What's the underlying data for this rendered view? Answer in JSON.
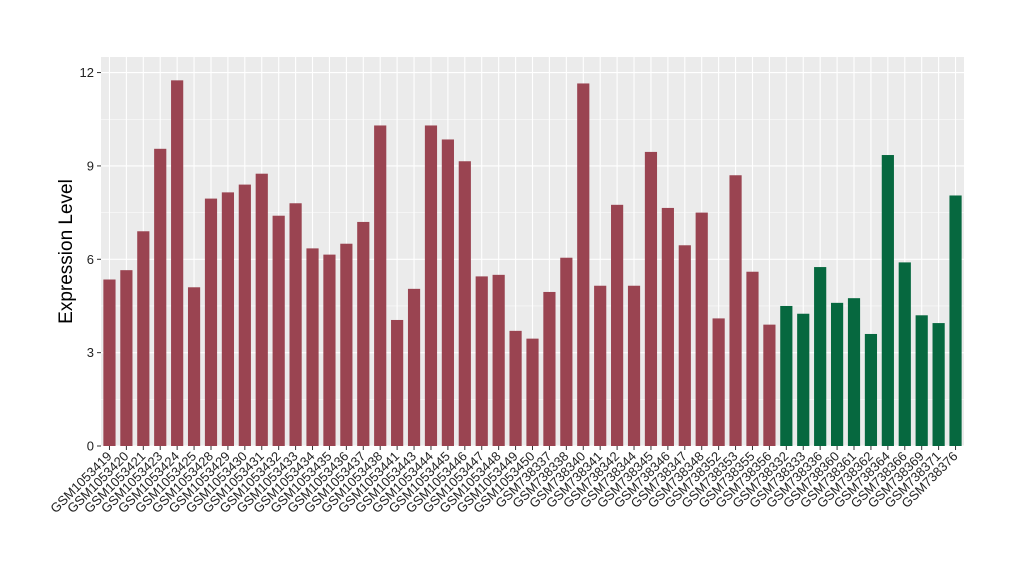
{
  "chart_data": {
    "type": "bar",
    "title": "",
    "xlabel": "",
    "ylabel": "Expression Level",
    "ylim": [
      0,
      12.5
    ],
    "yticks": [
      0,
      3,
      6,
      9,
      12
    ],
    "grid": true,
    "colors": {
      "group_a": "#9a4451",
      "group_b": "#06683f",
      "panel": "#ebebeb",
      "grid": "#ffffff"
    },
    "categories": [
      "GSM1053419",
      "GSM1053420",
      "GSM1053421",
      "GSM1053423",
      "GSM1053424",
      "GSM1053425",
      "GSM1053428",
      "GSM1053429",
      "GSM1053430",
      "GSM1053431",
      "GSM1053432",
      "GSM1053433",
      "GSM1053434",
      "GSM1053435",
      "GSM1053436",
      "GSM1053437",
      "GSM1053438",
      "GSM1053441",
      "GSM1053443",
      "GSM1053444",
      "GSM1053445",
      "GSM1053446",
      "GSM1053447",
      "GSM1053448",
      "GSM1053449",
      "GSM1053450",
      "GSM738337",
      "GSM738338",
      "GSM738340",
      "GSM738341",
      "GSM738342",
      "GSM738344",
      "GSM738345",
      "GSM738346",
      "GSM738347",
      "GSM738348",
      "GSM738352",
      "GSM738353",
      "GSM738355",
      "GSM738356",
      "GSM738332",
      "GSM738333",
      "GSM738336",
      "GSM738360",
      "GSM738361",
      "GSM738362",
      "GSM738364",
      "GSM738366",
      "GSM738369",
      "GSM738371",
      "GSM738376"
    ],
    "values": [
      5.35,
      5.65,
      6.9,
      9.55,
      11.75,
      5.1,
      7.95,
      8.15,
      8.4,
      8.75,
      7.4,
      7.8,
      6.35,
      6.15,
      6.5,
      7.2,
      10.3,
      4.05,
      5.05,
      10.3,
      9.85,
      9.15,
      5.45,
      5.5,
      3.7,
      3.45,
      4.95,
      6.05,
      11.65,
      5.15,
      7.75,
      5.15,
      9.45,
      7.65,
      6.45,
      7.5,
      4.1,
      8.7,
      5.6,
      3.9,
      4.5,
      4.25,
      5.75,
      4.6,
      4.75,
      3.6,
      9.35,
      5.9,
      4.2,
      3.95,
      8.05
    ],
    "groups": [
      "a",
      "a",
      "a",
      "a",
      "a",
      "a",
      "a",
      "a",
      "a",
      "a",
      "a",
      "a",
      "a",
      "a",
      "a",
      "a",
      "a",
      "a",
      "a",
      "a",
      "a",
      "a",
      "a",
      "a",
      "a",
      "a",
      "a",
      "a",
      "a",
      "a",
      "a",
      "a",
      "a",
      "a",
      "a",
      "a",
      "a",
      "a",
      "a",
      "a",
      "b",
      "b",
      "b",
      "b",
      "b",
      "b",
      "b",
      "b",
      "b",
      "b",
      "b"
    ]
  }
}
